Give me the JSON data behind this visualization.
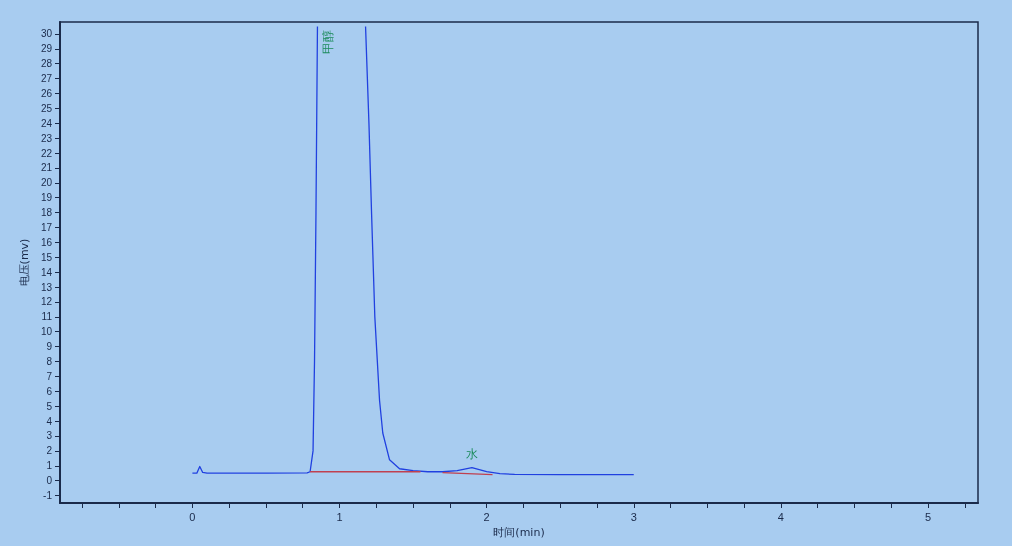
{
  "chart_data": {
    "type": "line",
    "xlabel": "时间(min)",
    "ylabel": "电压(mv)",
    "xlim": [
      -0.9,
      5.34
    ],
    "ylim": [
      -1.5,
      30.8
    ],
    "xticks": [
      {
        "value": -0.75,
        "label": null
      },
      {
        "value": -0.5,
        "label": null
      },
      {
        "value": -0.25,
        "label": null
      },
      0,
      {
        "value": 0.25,
        "label": null
      },
      {
        "value": 0.5,
        "label": null
      },
      {
        "value": 0.75,
        "label": null
      },
      1,
      {
        "value": 1.25,
        "label": null
      },
      {
        "value": 1.5,
        "label": null
      },
      {
        "value": 1.75,
        "label": null
      },
      2,
      {
        "value": 2.25,
        "label": null
      },
      {
        "value": 2.5,
        "label": null
      },
      {
        "value": 2.75,
        "label": null
      },
      3,
      {
        "value": 3.25,
        "label": null
      },
      {
        "value": 3.5,
        "label": null
      },
      {
        "value": 3.75,
        "label": null
      },
      4,
      {
        "value": 4.25,
        "label": null
      },
      {
        "value": 4.5,
        "label": null
      },
      {
        "value": 4.75,
        "label": null
      },
      5,
      {
        "value": 5.25,
        "label": null
      }
    ],
    "yticks": [
      -1,
      0,
      1,
      2,
      3,
      4,
      5,
      6,
      7,
      8,
      9,
      10,
      11,
      12,
      13,
      14,
      15,
      16,
      17,
      18,
      19,
      20,
      21,
      22,
      23,
      24,
      25,
      26,
      27,
      28,
      29,
      30
    ],
    "grid": false,
    "marker": "none",
    "line_style": "solid",
    "series": [
      {
        "color": "#2040e0",
        "x": [
          0,
          0.03,
          0.05,
          0.07,
          0.1,
          0.2,
          0.5,
          0.78,
          0.8,
          0.82,
          0.83,
          0.84,
          0.85,
          1.0,
          1.177,
          1.2,
          1.218,
          1.24,
          1.272,
          1.294,
          1.34,
          1.408,
          1.5,
          1.6,
          1.7,
          1.8,
          1.9,
          2.0,
          2.09,
          2.19,
          2.5,
          3.0
        ],
        "values": [
          0.5,
          0.5,
          0.95,
          0.55,
          0.5,
          0.5,
          0.5,
          0.52,
          0.6,
          2,
          8,
          18,
          30.5,
          null,
          30.5,
          24,
          17.9,
          11,
          5.4,
          3.2,
          1.4,
          0.8,
          0.67,
          0.6,
          0.6,
          0.68,
          0.87,
          0.6,
          0.47,
          0.42,
          0.4,
          0.4
        ]
      },
      {
        "color": "#c04050",
        "x": [
          0.8,
          1.55,
          1.6,
          1.7,
          2.04
        ],
        "values": [
          0.6,
          0.6,
          null,
          0.54,
          0.4
        ]
      }
    ],
    "annotations": [
      "甲醇",
      {
        "text": "水",
        "x": 1.9,
        "y": 0.87
      }
    ]
  }
}
